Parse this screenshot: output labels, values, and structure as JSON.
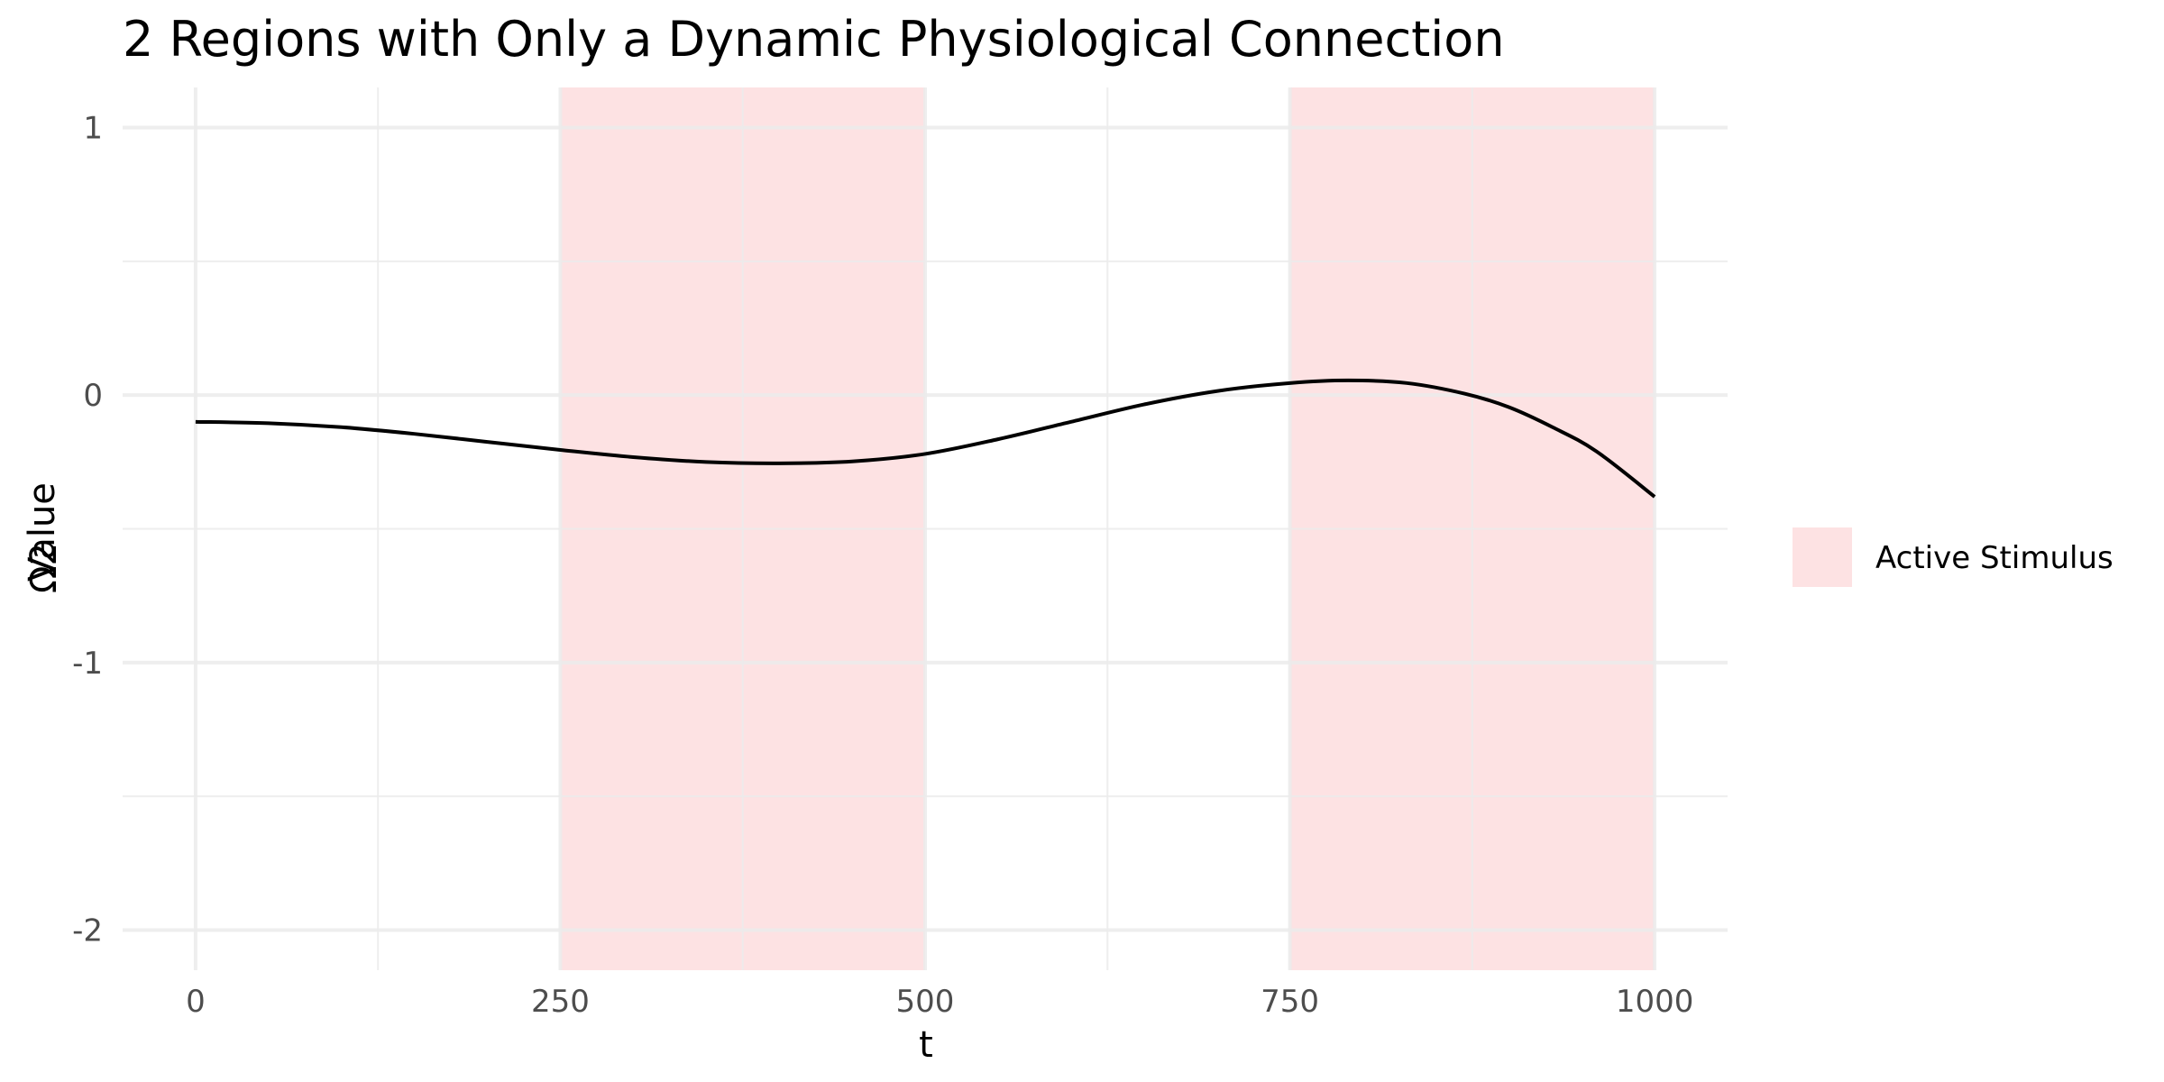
{
  "chart_data": {
    "type": "line",
    "title": "2 Regions with Only a Dynamic Physiological Connection",
    "xlabel": "t",
    "ylabel": "Value",
    "ylabel_overlap_glyph": "Ω2",
    "xlim": [
      -50,
      1050
    ],
    "ylim": [
      -2.15,
      1.15
    ],
    "x_ticks": [
      0,
      250,
      500,
      750,
      1000
    ],
    "x_tick_labels": [
      "0",
      "250",
      "500",
      "750",
      "1000"
    ],
    "y_ticks": [
      1,
      0,
      -1,
      -2
    ],
    "y_tick_labels": [
      "1",
      "0",
      "-1",
      "-2"
    ],
    "grid": true,
    "shaded_regions": [
      {
        "name": "Active Stimulus",
        "x_start": 250,
        "x_end": 500
      },
      {
        "name": "Active Stimulus",
        "x_start": 750,
        "x_end": 1000
      }
    ],
    "legend": {
      "position": "right",
      "entries": [
        {
          "label": "Active Stimulus",
          "color": "#fde2e3"
        }
      ]
    },
    "series": [
      {
        "color": "#000000",
        "x": [
          0,
          50,
          100,
          150,
          200,
          250,
          300,
          350,
          400,
          450,
          500,
          550,
          600,
          650,
          700,
          750,
          790,
          830,
          870,
          900,
          930,
          960,
          1000
        ],
        "y": [
          -0.1,
          -0.105,
          -0.12,
          -0.145,
          -0.175,
          -0.205,
          -0.232,
          -0.25,
          -0.255,
          -0.248,
          -0.22,
          -0.165,
          -0.1,
          -0.035,
          0.015,
          0.045,
          0.055,
          0.045,
          0.005,
          -0.045,
          -0.12,
          -0.21,
          -0.38
        ]
      }
    ]
  },
  "colors": {
    "background": "#ffffff",
    "grid": "#ebebeb",
    "shade": "#fde2e3",
    "line": "#000000"
  }
}
